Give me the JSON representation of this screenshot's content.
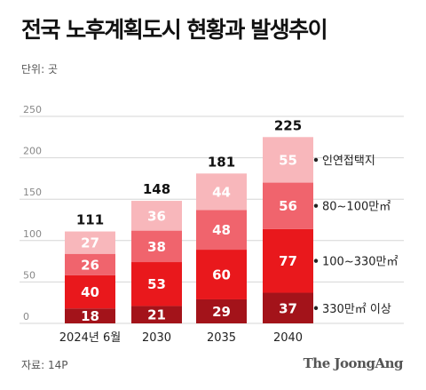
{
  "header": {
    "title": "전국 노후계획도시 현황과 발생추이",
    "unit": "단위: 곳"
  },
  "footer": {
    "source": "자료: 14P",
    "brand": "The JoongAng"
  },
  "chart_data": {
    "type": "bar",
    "stacked": true,
    "categories": [
      "2024년 6월",
      "2030",
      "2035",
      "2040"
    ],
    "series": [
      {
        "name": "330만㎡ 이상",
        "values": [
          18,
          21,
          29,
          37
        ],
        "color": "#a3131a"
      },
      {
        "name": "100~330만㎡",
        "values": [
          40,
          53,
          60,
          77
        ],
        "color": "#e9181c"
      },
      {
        "name": "80~100만㎡",
        "values": [
          26,
          38,
          48,
          56
        ],
        "color": "#f0646d"
      },
      {
        "name": "인연접택지",
        "values": [
          27,
          36,
          44,
          55
        ],
        "color": "#f8b7bb"
      }
    ],
    "totals": [
      111,
      148,
      181,
      225
    ],
    "y_ticks": [
      0,
      50,
      100,
      150,
      200,
      250
    ],
    "ylim": [
      0,
      250
    ],
    "grid": true,
    "legend": "right"
  }
}
